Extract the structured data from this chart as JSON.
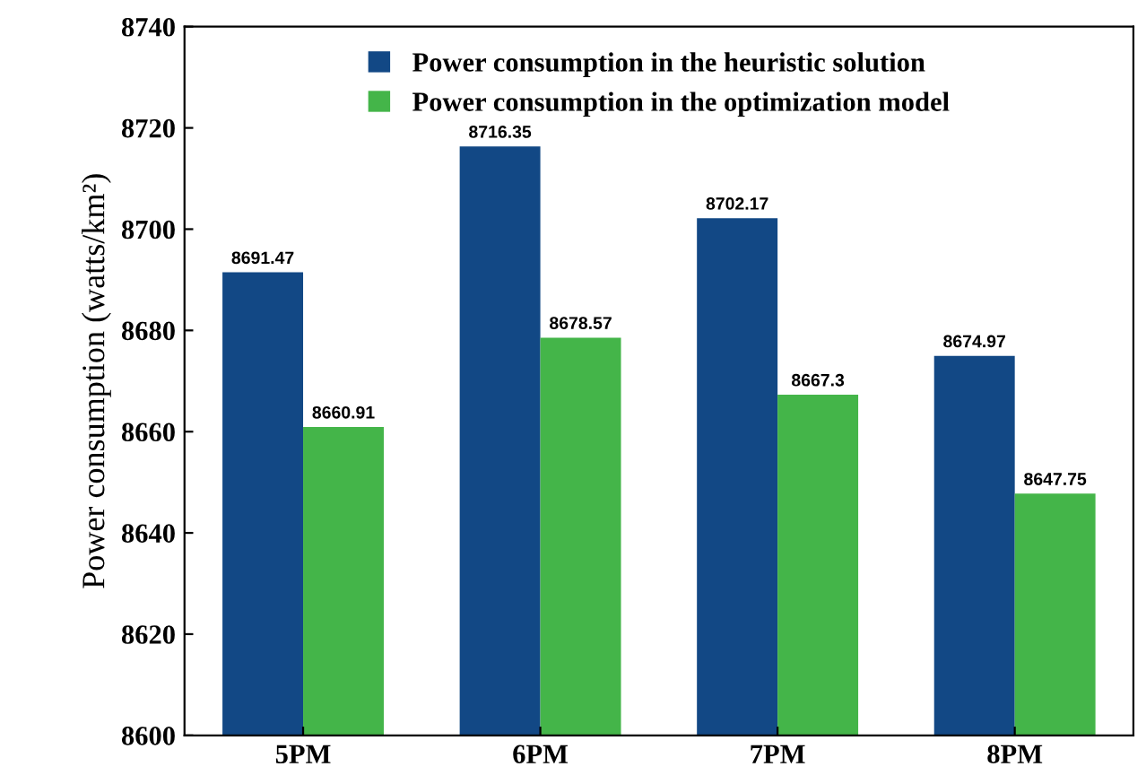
{
  "chart_data": {
    "type": "bar",
    "ylabel": "Power consumption (watts/km²)",
    "categories": [
      "5PM",
      "6PM",
      "7PM",
      "8PM"
    ],
    "series": [
      {
        "name": "Power consumption in the heuristic solution",
        "color": "#124885",
        "values": [
          8691.47,
          8716.35,
          8702.17,
          8674.97
        ]
      },
      {
        "name": "Power consumption in the optimization model",
        "color": "#44b549",
        "values": [
          8660.91,
          8678.57,
          8667.3,
          8647.75
        ]
      }
    ],
    "ylim": [
      8600,
      8740
    ],
    "yticks": [
      8600,
      8620,
      8640,
      8660,
      8680,
      8700,
      8720,
      8740
    ],
    "data_labels": true,
    "grid": false,
    "legend": "top"
  }
}
